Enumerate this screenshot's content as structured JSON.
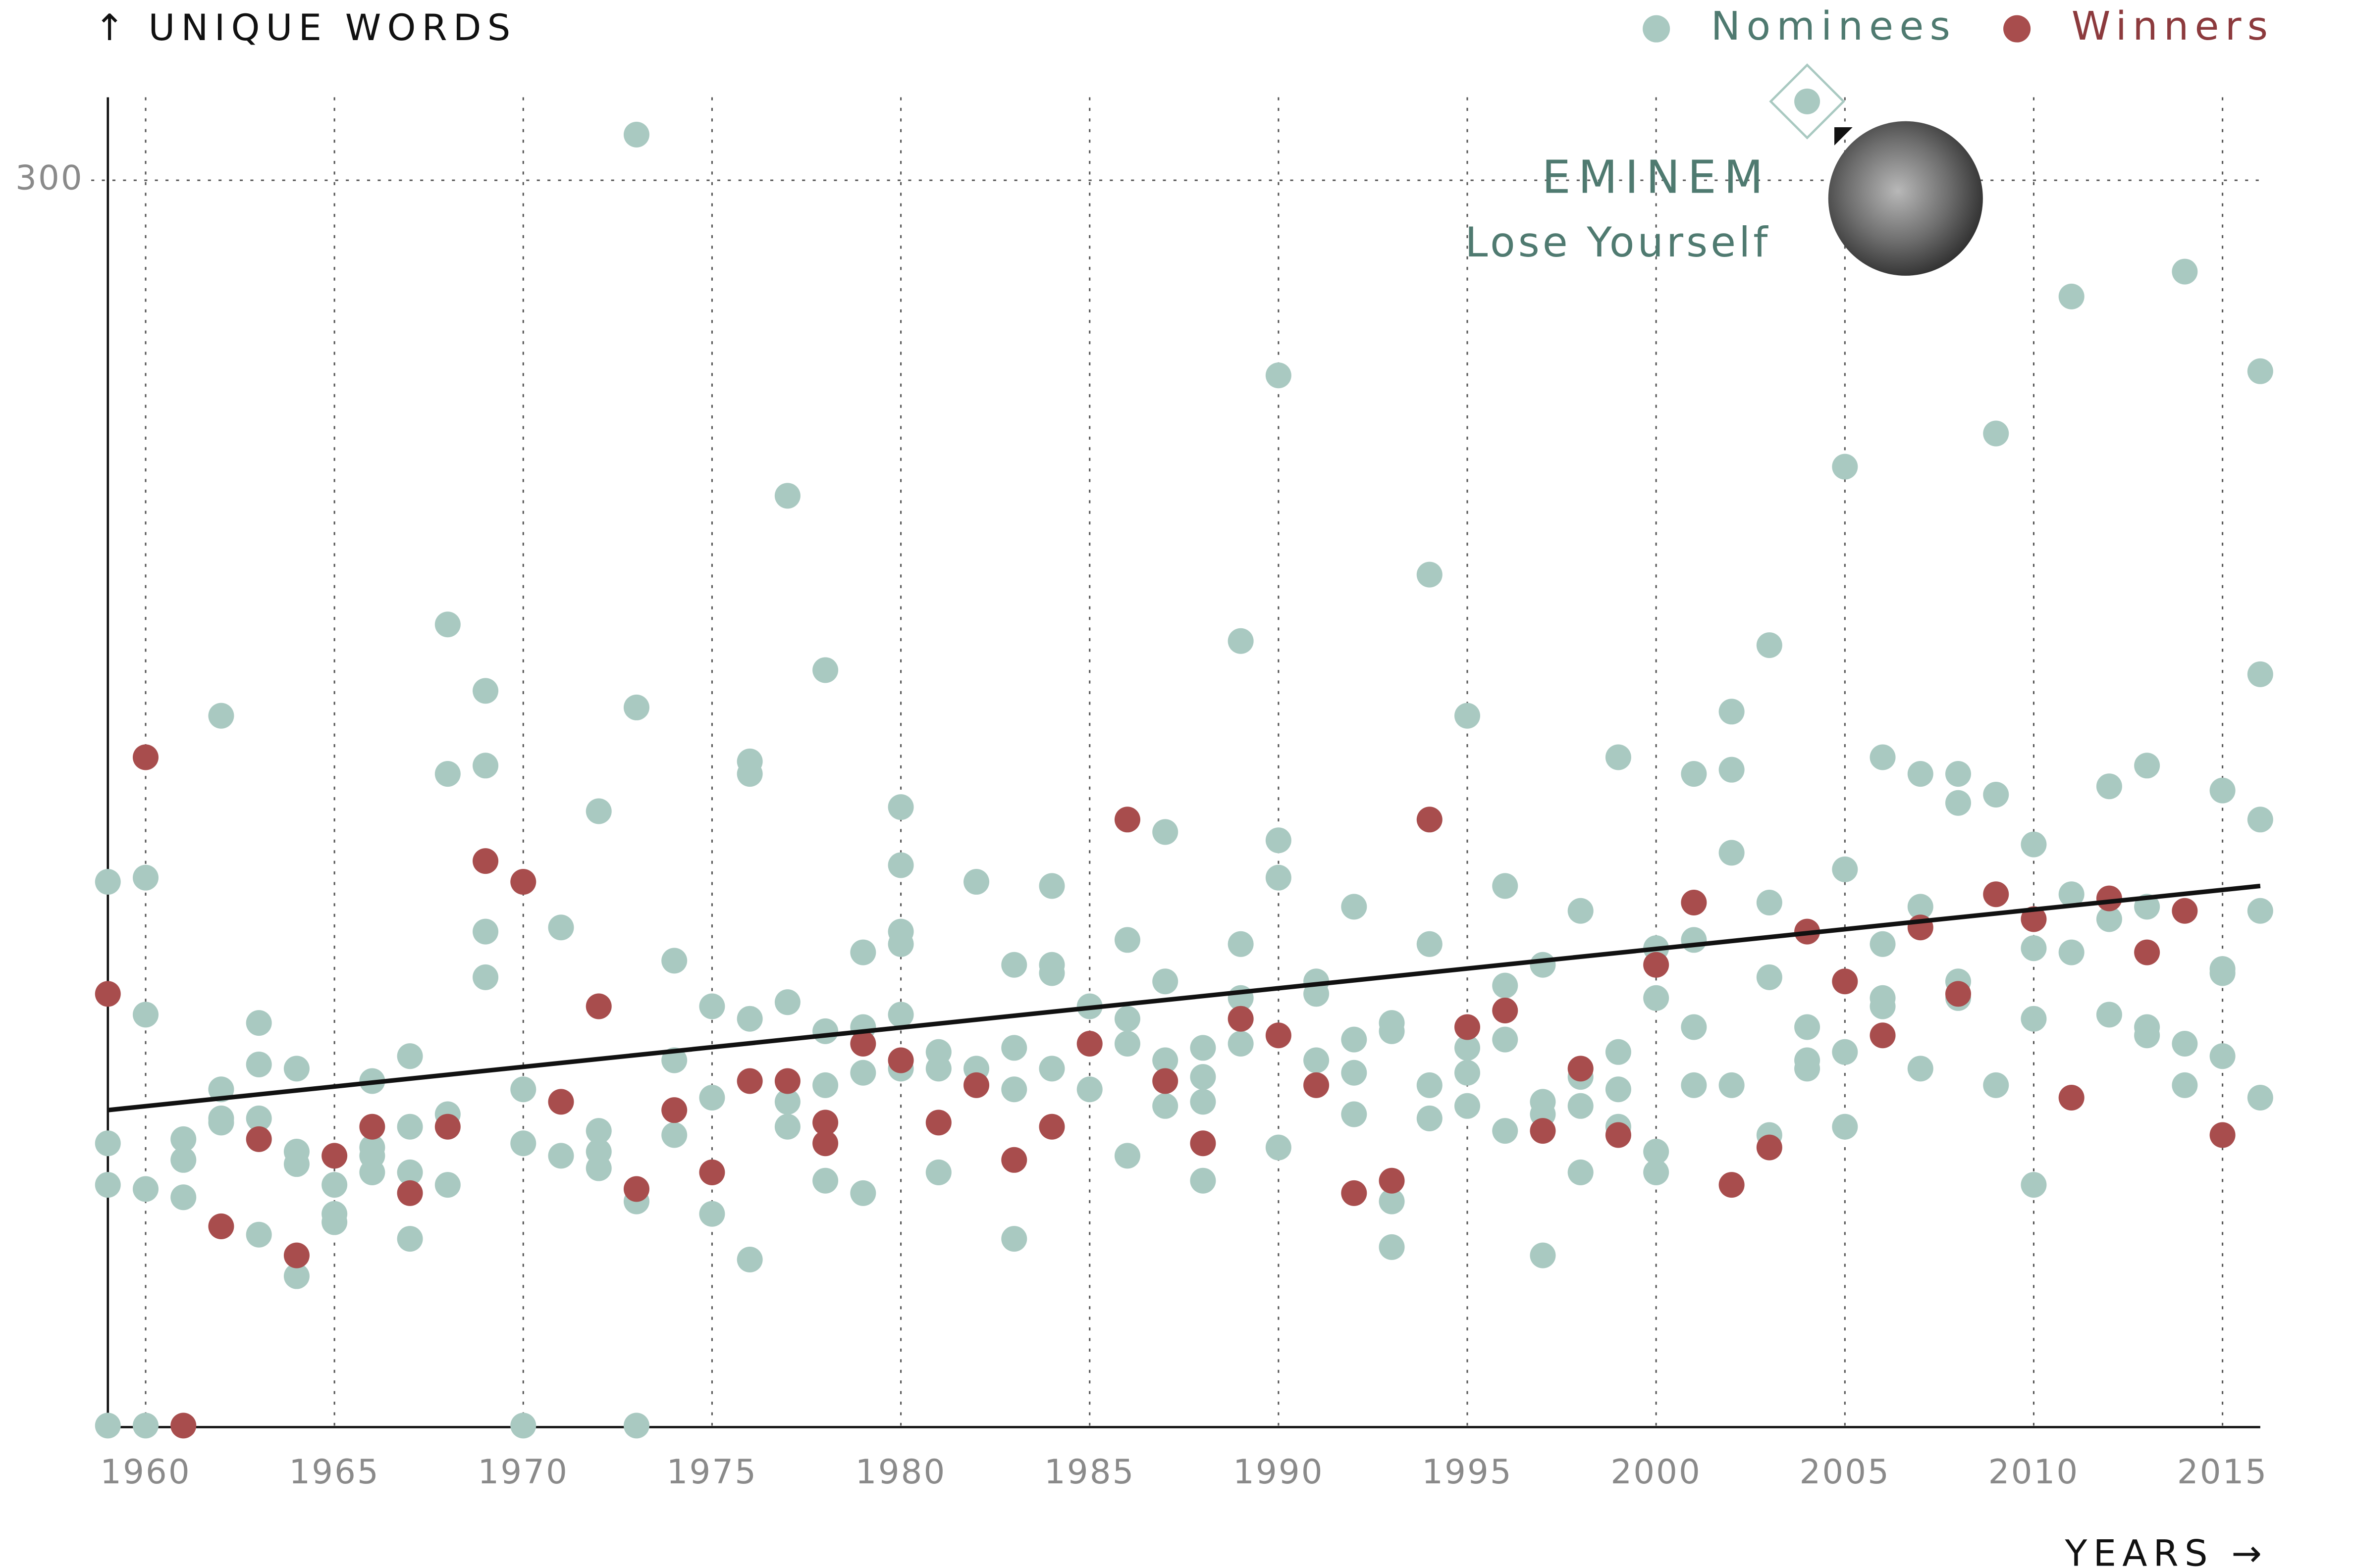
{
  "chart_data": {
    "type": "scatter",
    "y_label": "↑ UNIQUE WORDS",
    "x_label": "YEARS →",
    "xlim": [
      1959,
      2016
    ],
    "ylim": [
      0,
      320
    ],
    "xticks": [
      1960,
      1965,
      1970,
      1975,
      1980,
      1985,
      1990,
      1995,
      2000,
      2005,
      2010,
      2015
    ],
    "yticks": [
      300
    ],
    "grid": true,
    "legend": "top-right",
    "series": [
      {
        "name": "Nominees",
        "color": "#a9c9c1",
        "text_color": "#4f7a70",
        "x": [
          1959,
          1959,
          1959,
          1959,
          1960,
          1960,
          1960,
          1960,
          1961,
          1961,
          1961,
          1962,
          1962,
          1962,
          1962,
          1963,
          1963,
          1963,
          1963,
          1964,
          1964,
          1964,
          1964,
          1965,
          1965,
          1965,
          1966,
          1966,
          1966,
          1966,
          1967,
          1967,
          1967,
          1967,
          1968,
          1968,
          1968,
          1968,
          1969,
          1969,
          1969,
          1969,
          1970,
          1970,
          1970,
          1971,
          1971,
          1972,
          1972,
          1972,
          1972,
          1973,
          1973,
          1973,
          1973,
          1974,
          1974,
          1974,
          1975,
          1975,
          1975,
          1976,
          1976,
          1976,
          1976,
          1977,
          1977,
          1977,
          1977,
          1978,
          1978,
          1978,
          1978,
          1979,
          1979,
          1979,
          1979,
          1980,
          1980,
          1980,
          1980,
          1980,
          1980,
          1981,
          1981,
          1981,
          1982,
          1982,
          1983,
          1983,
          1983,
          1983,
          1984,
          1984,
          1984,
          1984,
          1985,
          1985,
          1986,
          1986,
          1986,
          1986,
          1987,
          1987,
          1987,
          1987,
          1988,
          1988,
          1988,
          1988,
          1989,
          1989,
          1989,
          1989,
          1990,
          1990,
          1990,
          1990,
          1991,
          1991,
          1991,
          1992,
          1992,
          1992,
          1992,
          1993,
          1993,
          1993,
          1993,
          1994,
          1994,
          1994,
          1994,
          1995,
          1995,
          1995,
          1995,
          1996,
          1996,
          1996,
          1996,
          1997,
          1997,
          1997,
          1997,
          1998,
          1998,
          1998,
          1998,
          1999,
          1999,
          1999,
          1999,
          2000,
          2000,
          2000,
          2000,
          2001,
          2001,
          2001,
          2001,
          2002,
          2002,
          2002,
          2002,
          2003,
          2003,
          2003,
          2003,
          2004,
          2004,
          2004,
          2004,
          2005,
          2005,
          2005,
          2005,
          2006,
          2006,
          2006,
          2006,
          2007,
          2007,
          2007,
          2008,
          2008,
          2008,
          2008,
          2009,
          2009,
          2009,
          2010,
          2010,
          2010,
          2010,
          2011,
          2011,
          2011,
          2012,
          2012,
          2012,
          2013,
          2013,
          2013,
          2013,
          2014,
          2014,
          2014,
          2015,
          2015,
          2015,
          2015,
          2016,
          2016,
          2016,
          2016,
          2016
        ],
        "values": [
          131,
          68,
          58,
          0,
          132,
          99,
          57,
          0,
          69,
          64,
          55,
          171,
          81,
          74,
          73,
          97,
          87,
          74,
          46,
          86,
          66,
          63,
          36,
          58,
          51,
          49,
          83,
          67,
          65,
          61,
          89,
          72,
          61,
          45,
          193,
          157,
          75,
          58,
          177,
          159,
          119,
          108,
          81,
          68,
          0,
          120,
          65,
          148,
          71,
          66,
          62,
          311,
          173,
          54,
          0,
          112,
          88,
          70,
          101,
          79,
          51,
          160,
          157,
          98,
          40,
          224,
          102,
          78,
          72,
          182,
          95,
          82,
          59,
          114,
          96,
          85,
          56,
          149,
          135,
          119,
          116,
          99,
          86,
          90,
          86,
          61,
          131,
          86,
          111,
          91,
          81,
          45,
          130,
          111,
          109,
          86,
          101,
          81,
          117,
          98,
          92,
          65,
          143,
          107,
          88,
          77,
          91,
          84,
          78,
          59,
          189,
          116,
          103,
          92,
          253,
          141,
          132,
          67,
          107,
          104,
          88,
          125,
          93,
          85,
          75,
          97,
          95,
          54,
          43,
          205,
          116,
          82,
          74,
          171,
          91,
          85,
          77,
          130,
          106,
          93,
          71,
          111,
          78,
          75,
          41,
          124,
          84,
          77,
          61,
          161,
          90,
          81,
          72,
          115,
          103,
          66,
          61,
          157,
          117,
          96,
          82,
          172,
          158,
          138,
          82,
          188,
          126,
          108,
          70,
          319,
          96,
          88,
          86,
          231,
          134,
          90,
          72,
          161,
          116,
          103,
          101,
          157,
          125,
          86,
          157,
          150,
          107,
          103,
          239,
          152,
          82,
          140,
          115,
          98,
          58,
          272,
          128,
          114,
          154,
          122,
          99,
          159,
          125,
          96,
          94,
          278,
          92,
          82,
          153,
          110,
          109,
          89,
          254,
          181,
          146,
          124,
          79
        ]
      },
      {
        "name": "Winners",
        "color": "#a84d4d",
        "text_color": "#8c3a3d",
        "x": [
          1959,
          1960,
          1961,
          1962,
          1963,
          1964,
          1965,
          1966,
          1967,
          1968,
          1969,
          1970,
          1971,
          1972,
          1973,
          1974,
          1975,
          1976,
          1977,
          1978,
          1978,
          1979,
          1980,
          1981,
          1982,
          1983,
          1984,
          1985,
          1986,
          1987,
          1988,
          1989,
          1990,
          1991,
          1992,
          1993,
          1994,
          1995,
          1996,
          1997,
          1998,
          1999,
          2000,
          2001,
          2002,
          2003,
          2004,
          2005,
          2006,
          2007,
          2008,
          2009,
          2010,
          2011,
          2012,
          2013,
          2014,
          2015
        ],
        "values": [
          104,
          161,
          0,
          48,
          69,
          41,
          65,
          72,
          56,
          72,
          136,
          131,
          78,
          101,
          57,
          76,
          61,
          83,
          83,
          73,
          68,
          92,
          88,
          73,
          82,
          64,
          72,
          92,
          146,
          83,
          68,
          98,
          94,
          82,
          56,
          59,
          146,
          96,
          100,
          71,
          86,
          70,
          111,
          126,
          58,
          67,
          119,
          107,
          94,
          120,
          104,
          128,
          122,
          79,
          127,
          114,
          124,
          70
        ]
      }
    ],
    "trend": {
      "x": [
        1959,
        2016
      ],
      "values": [
        76,
        130
      ],
      "color": "#111111"
    },
    "annotation": {
      "title": "EMINEM",
      "subtitle": "Lose Yourself",
      "x": 2004,
      "y": 319
    }
  }
}
